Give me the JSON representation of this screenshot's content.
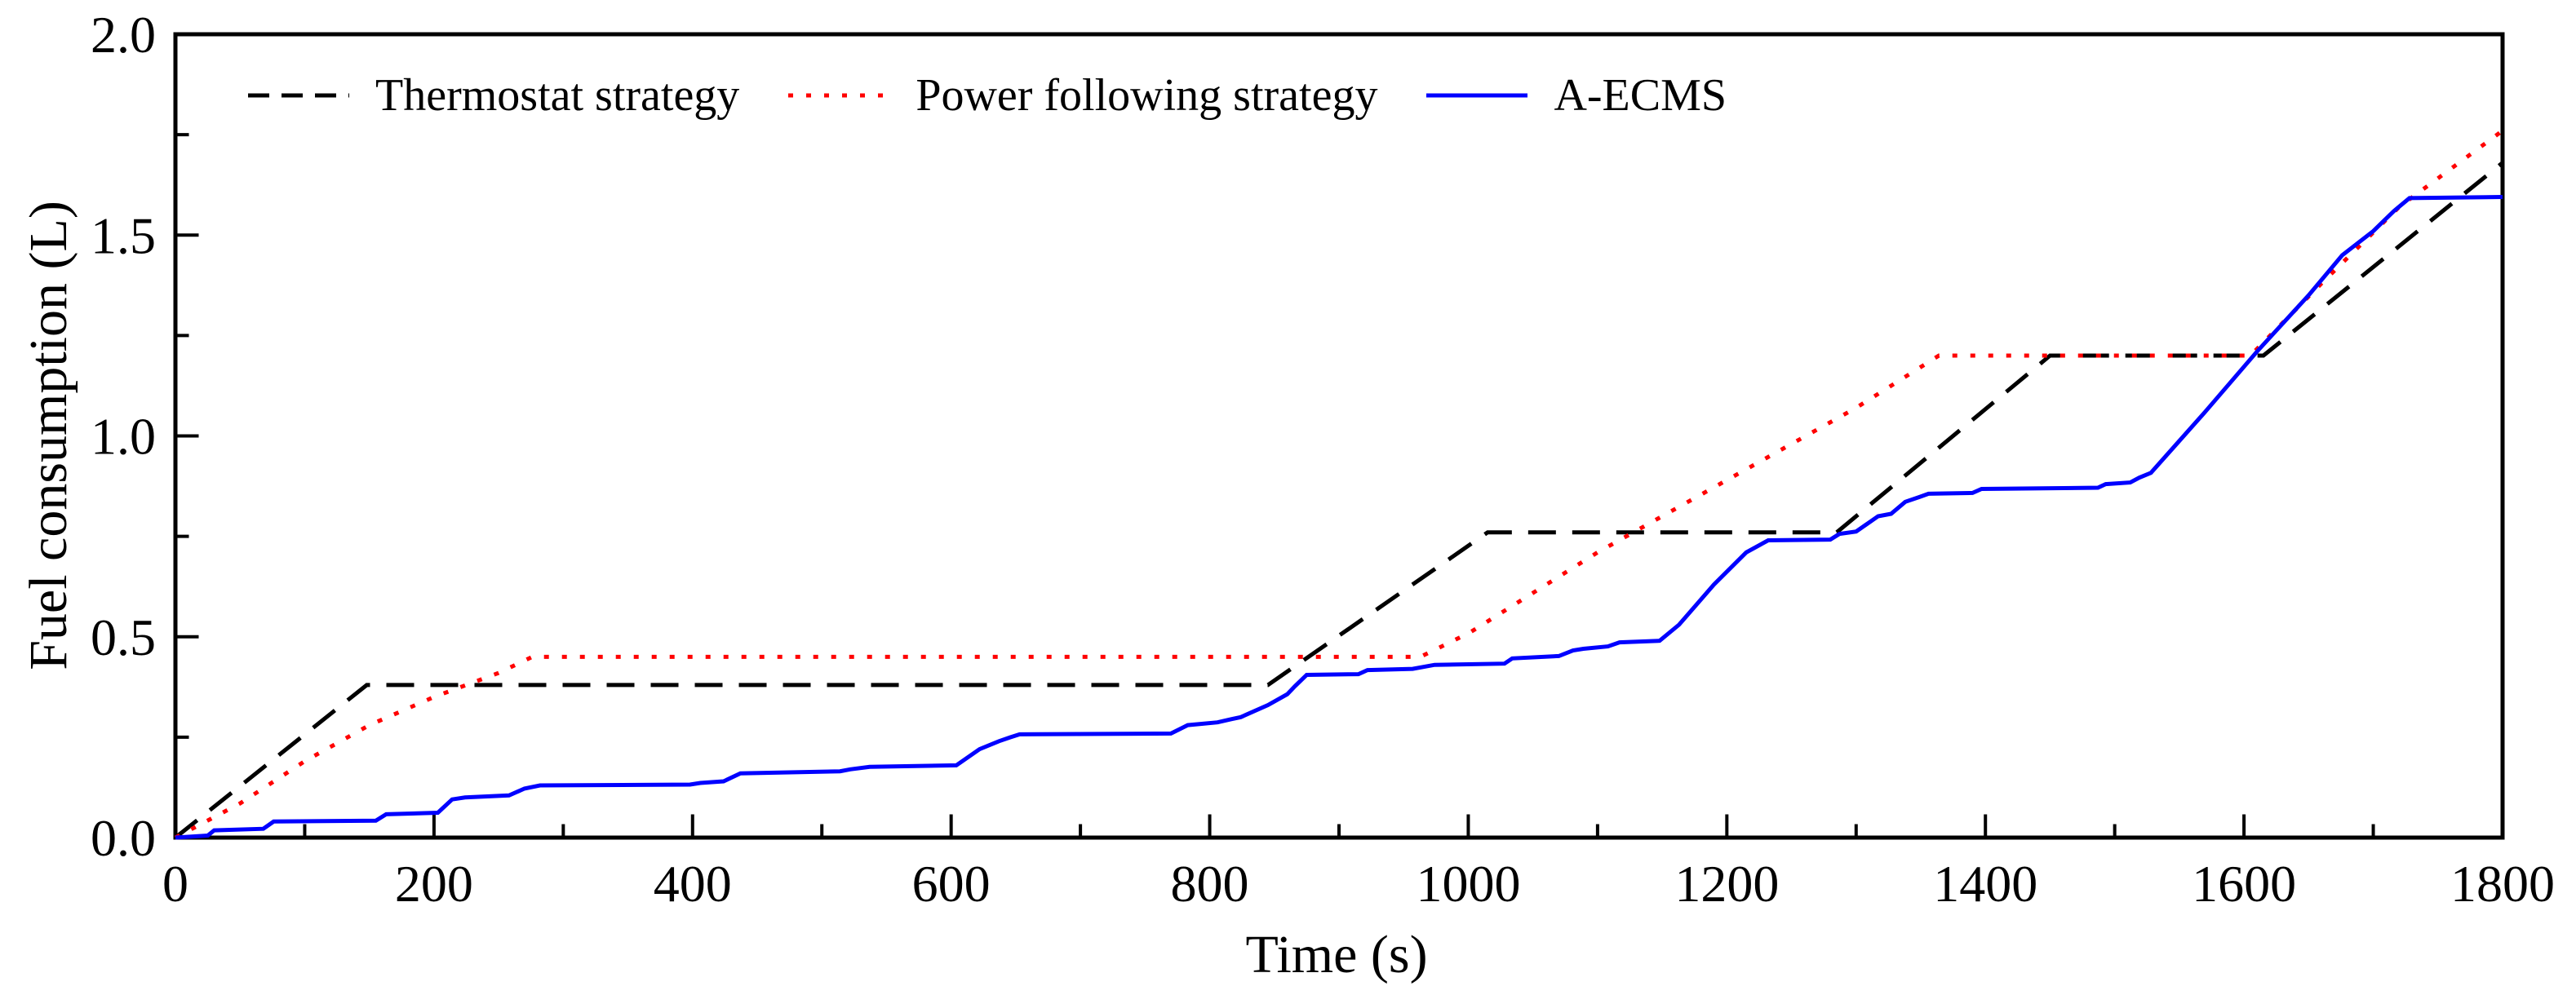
{
  "chart_data": {
    "type": "line",
    "title": "",
    "xlabel": "Time (s)",
    "ylabel": "Fuel consumption (L)",
    "xlim": [
      0,
      1800
    ],
    "ylim": [
      0,
      2.0
    ],
    "grid": false,
    "legend_position": "top-left-inside-horizontal",
    "x_major_tick_step": 200,
    "x_minor_tick_step": 100,
    "y_major_tick_step": 0.5,
    "y_minor_tick_step": 0.25,
    "x_tick_labels": [
      {
        "value": 0,
        "label": "0"
      },
      {
        "value": 200,
        "label": "200"
      },
      {
        "value": 400,
        "label": "400"
      },
      {
        "value": 600,
        "label": "600"
      },
      {
        "value": 800,
        "label": "800"
      },
      {
        "value": 1000,
        "label": "1000"
      },
      {
        "value": 1200,
        "label": "1200"
      },
      {
        "value": 1400,
        "label": "1400"
      },
      {
        "value": 1600,
        "label": "1600"
      },
      {
        "value": 1800,
        "label": "1800"
      }
    ],
    "y_tick_labels": [
      {
        "value": 0,
        "label": "0.0"
      },
      {
        "value": 0.5,
        "label": "0.5"
      },
      {
        "value": 1.0,
        "label": "1.0"
      },
      {
        "value": 1.5,
        "label": "1.5"
      },
      {
        "value": 2.0,
        "label": "2.0"
      }
    ],
    "series": [
      {
        "name": "Thermostat strategy",
        "color": "#000000",
        "style": "dashed",
        "points": [
          [
            0,
            0
          ],
          [
            148,
            0.38
          ],
          [
            845,
            0.38
          ],
          [
            1015,
            0.76
          ],
          [
            1285,
            0.76
          ],
          [
            1450,
            1.2
          ],
          [
            1615,
            1.2
          ],
          [
            1800,
            1.68
          ]
        ]
      },
      {
        "name": "Power following strategy",
        "color": "#ff0000",
        "style": "dotted",
        "points": [
          [
            0,
            0
          ],
          [
            50,
            0.085
          ],
          [
            100,
            0.19
          ],
          [
            150,
            0.28
          ],
          [
            200,
            0.35
          ],
          [
            250,
            0.41
          ],
          [
            276,
            0.45
          ],
          [
            963,
            0.45
          ],
          [
            1001,
            0.51
          ],
          [
            1100,
            0.71
          ],
          [
            1200,
            0.89
          ],
          [
            1300,
            1.07
          ],
          [
            1364,
            1.2
          ],
          [
            1605,
            1.2
          ],
          [
            1660,
            1.38
          ],
          [
            1720,
            1.57
          ],
          [
            1800,
            1.76
          ]
        ]
      },
      {
        "name": "A-ECMS",
        "color": "#0000ff",
        "style": "solid",
        "points": [
          [
            0,
            0
          ],
          [
            25,
            0.005
          ],
          [
            30,
            0.018
          ],
          [
            68,
            0.022
          ],
          [
            76,
            0.04
          ],
          [
            155,
            0.042
          ],
          [
            163,
            0.058
          ],
          [
            203,
            0.062
          ],
          [
            214,
            0.095
          ],
          [
            224,
            0.1
          ],
          [
            258,
            0.105
          ],
          [
            270,
            0.122
          ],
          [
            282,
            0.13
          ],
          [
            398,
            0.132
          ],
          [
            406,
            0.136
          ],
          [
            424,
            0.14
          ],
          [
            437,
            0.16
          ],
          [
            514,
            0.165
          ],
          [
            522,
            0.17
          ],
          [
            537,
            0.176
          ],
          [
            604,
            0.18
          ],
          [
            622,
            0.22
          ],
          [
            637,
            0.24
          ],
          [
            646,
            0.25
          ],
          [
            653,
            0.257
          ],
          [
            770,
            0.259
          ],
          [
            783,
            0.28
          ],
          [
            806,
            0.287
          ],
          [
            817,
            0.295
          ],
          [
            824,
            0.3
          ],
          [
            845,
            0.33
          ],
          [
            860,
            0.357
          ],
          [
            866,
            0.377
          ],
          [
            875,
            0.405
          ],
          [
            915,
            0.407
          ],
          [
            922,
            0.417
          ],
          [
            957,
            0.42
          ],
          [
            974,
            0.43
          ],
          [
            1028,
            0.433
          ],
          [
            1034,
            0.446
          ],
          [
            1070,
            0.452
          ],
          [
            1081,
            0.466
          ],
          [
            1089,
            0.47
          ],
          [
            1108,
            0.476
          ],
          [
            1117,
            0.486
          ],
          [
            1148,
            0.49
          ],
          [
            1163,
            0.53
          ],
          [
            1190,
            0.63
          ],
          [
            1215,
            0.71
          ],
          [
            1232,
            0.74
          ],
          [
            1280,
            0.742
          ],
          [
            1287,
            0.756
          ],
          [
            1300,
            0.762
          ],
          [
            1317,
            0.8
          ],
          [
            1327,
            0.806
          ],
          [
            1338,
            0.836
          ],
          [
            1349,
            0.848
          ],
          [
            1356,
            0.856
          ],
          [
            1390,
            0.858
          ],
          [
            1397,
            0.868
          ],
          [
            1487,
            0.871
          ],
          [
            1493,
            0.88
          ],
          [
            1512,
            0.884
          ],
          [
            1519,
            0.896
          ],
          [
            1528,
            0.908
          ],
          [
            1570,
            1.06
          ],
          [
            1610,
            1.21
          ],
          [
            1650,
            1.35
          ],
          [
            1676,
            1.45
          ],
          [
            1700,
            1.51
          ],
          [
            1716,
            1.56
          ],
          [
            1728,
            1.592
          ],
          [
            1800,
            1.595
          ]
        ]
      }
    ]
  },
  "colors": {
    "axis": "#000000",
    "background": "#ffffff",
    "thermostat": "#000000",
    "power_following": "#ff0000",
    "a_ecms": "#0000ff"
  }
}
